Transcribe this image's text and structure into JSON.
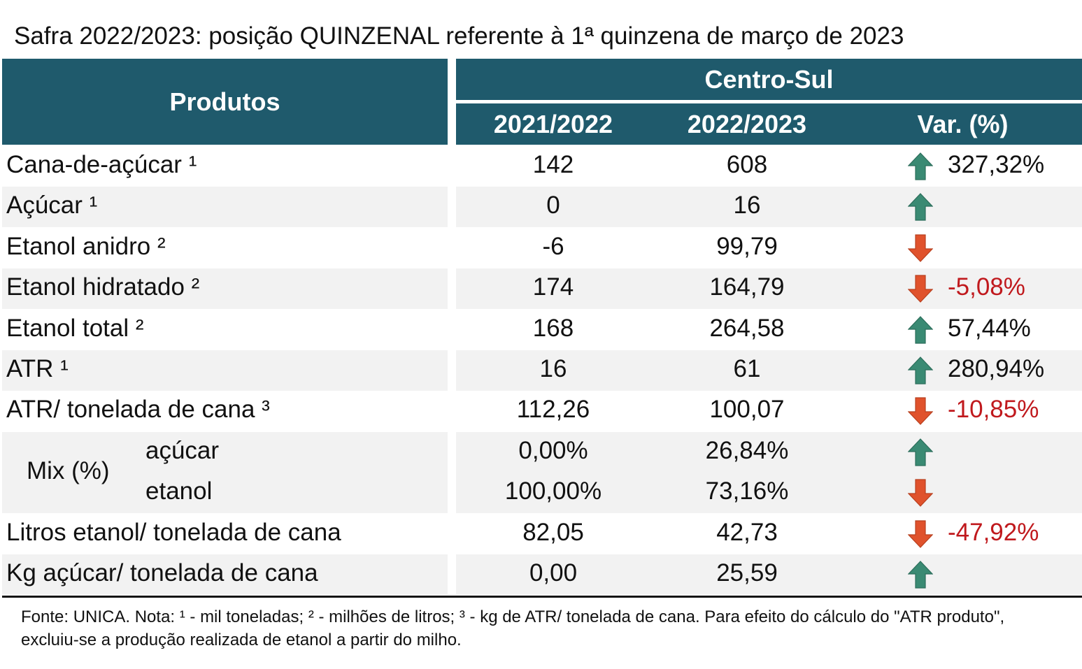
{
  "title": "Safra 2022/2023: posição QUINZENAL referente à 1ª quinzena de março de 2023",
  "header": {
    "produtos": "Produtos",
    "region": "Centro-Sul",
    "col_prev": "2021/2022",
    "col_curr": "2022/2023",
    "col_var": "Var. (%)"
  },
  "colors": {
    "header_bg": "#1F5A6C",
    "up_arrow": "#3A8A73",
    "down_arrow": "#E0522C",
    "negative_text": "#C0191D"
  },
  "rows": [
    {
      "label": "Cana-de-açúcar ¹",
      "prev": "142",
      "curr": "608",
      "trend": "up",
      "var": "327,32%"
    },
    {
      "label": "Açúcar ¹",
      "prev": "0",
      "curr": "16",
      "trend": "up",
      "var": ""
    },
    {
      "label": "Etanol anidro ²",
      "prev": "-6",
      "curr": "99,79",
      "trend": "down",
      "var": ""
    },
    {
      "label": "Etanol hidratado ²",
      "prev": "174",
      "curr": "164,79",
      "trend": "down",
      "var": "-5,08%"
    },
    {
      "label": "Etanol total ²",
      "prev": "168",
      "curr": "264,58",
      "trend": "up",
      "var": "57,44%"
    },
    {
      "label": "ATR ¹",
      "prev": "16",
      "curr": "61",
      "trend": "up",
      "var": "280,94%"
    },
    {
      "label": "ATR/ tonelada de cana ³",
      "prev": "112,26",
      "curr": "100,07",
      "trend": "down",
      "var": "-10,85%"
    }
  ],
  "mix": {
    "label": "Mix (%)",
    "rows": [
      {
        "label": "açúcar",
        "prev": "0,00%",
        "curr": "26,84%",
        "trend": "up",
        "var": ""
      },
      {
        "label": "etanol",
        "prev": "100,00%",
        "curr": "73,16%",
        "trend": "down",
        "var": ""
      }
    ]
  },
  "rows_after": [
    {
      "label": "Litros etanol/ tonelada de cana",
      "prev": "82,05",
      "curr": "42,73",
      "trend": "down",
      "var": "-47,92%"
    },
    {
      "label": "Kg açúcar/ tonelada de cana",
      "prev": "0,00",
      "curr": "25,59",
      "trend": "up",
      "var": ""
    }
  ],
  "footnote": "Fonte: UNICA. Nota: ¹ - mil toneladas; ² - milhões de litros; ³ - kg de ATR/ tonelada de cana. Para efeito do cálculo do \"ATR produto\", excluiu-se a produção realizada de etanol a partir do milho."
}
